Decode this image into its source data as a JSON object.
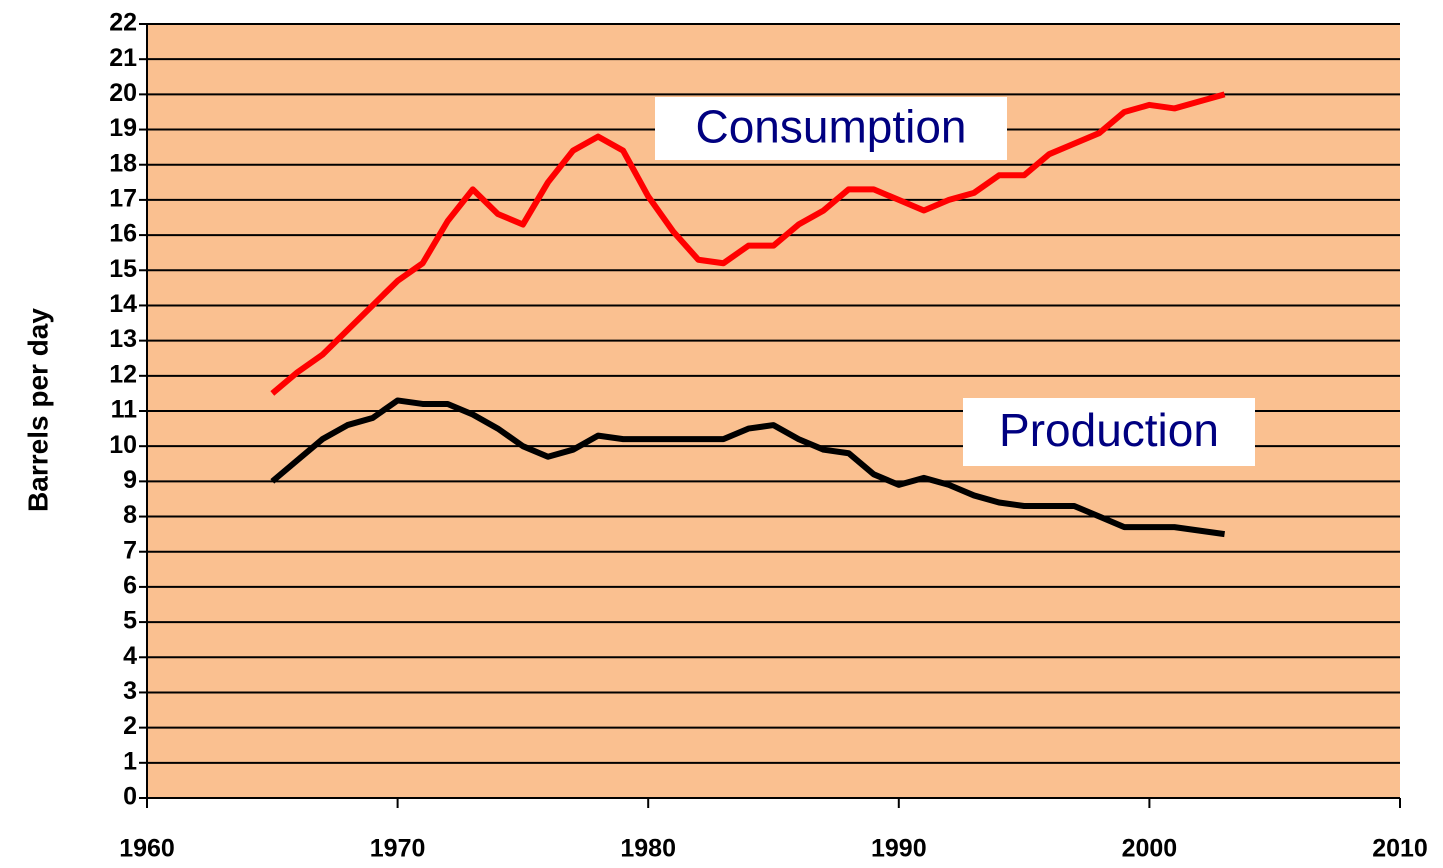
{
  "chart_data": {
    "type": "line",
    "y_label": "Barrels per day",
    "annotations": [
      "Consumption",
      "Production"
    ],
    "x": [
      1965,
      1966,
      1967,
      1968,
      1969,
      1970,
      1971,
      1972,
      1973,
      1974,
      1975,
      1976,
      1977,
      1978,
      1979,
      1980,
      1981,
      1982,
      1983,
      1984,
      1985,
      1986,
      1987,
      1988,
      1989,
      1990,
      1991,
      1992,
      1993,
      1994,
      1995,
      1996,
      1997,
      1998,
      1999,
      2000,
      2001,
      2002,
      2003
    ],
    "series": [
      {
        "name": "Consumption",
        "color": "#ff0000",
        "values": [
          11.5,
          12.1,
          12.6,
          13.3,
          14.0,
          14.7,
          15.2,
          16.4,
          17.3,
          16.6,
          16.3,
          17.5,
          18.4,
          18.8,
          18.4,
          17.1,
          16.1,
          15.3,
          15.2,
          15.7,
          15.7,
          16.3,
          16.7,
          17.3,
          17.3,
          17.0,
          16.7,
          17.0,
          17.2,
          17.7,
          17.7,
          18.3,
          18.6,
          18.9,
          19.5,
          19.7,
          19.6,
          19.8,
          20.0
        ]
      },
      {
        "name": "Production",
        "color": "#000000",
        "values": [
          9.0,
          9.6,
          10.2,
          10.6,
          10.8,
          11.3,
          11.2,
          11.2,
          10.9,
          10.5,
          10.0,
          9.7,
          9.9,
          10.3,
          10.2,
          10.2,
          10.2,
          10.2,
          10.2,
          10.5,
          10.6,
          10.2,
          9.9,
          9.8,
          9.2,
          8.9,
          9.1,
          8.9,
          8.6,
          8.4,
          8.3,
          8.3,
          8.3,
          8.0,
          7.7,
          7.7,
          7.7,
          7.6,
          7.5
        ]
      }
    ],
    "xlim": [
      1960,
      2010
    ],
    "xticks": [
      1960,
      1970,
      1980,
      1990,
      2000,
      2010
    ],
    "ylim": [
      0,
      22
    ],
    "yticks": [
      0,
      1,
      2,
      3,
      4,
      5,
      6,
      7,
      8,
      9,
      10,
      11,
      12,
      13,
      14,
      15,
      16,
      17,
      18,
      19,
      20,
      21,
      22
    ],
    "grid": true,
    "plot_background": "#fac090"
  }
}
